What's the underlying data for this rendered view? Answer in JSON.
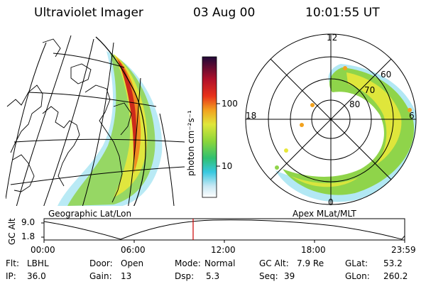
{
  "header": {
    "instrument": "Ultraviolet Imager",
    "date": "03 Aug 00",
    "time": "10:01:55 UT"
  },
  "left_map": {
    "caption": "Geographic Lat/Lon"
  },
  "right_map": {
    "caption": "Apex MLat/MLT",
    "mlt_labels": [
      "12",
      "18",
      "6",
      "0"
    ],
    "lat_labels": [
      "60",
      "70",
      "80"
    ]
  },
  "colorbar": {
    "label": "photon cm⁻²s⁻¹",
    "ticks": [
      "100",
      "10"
    ],
    "scale": "log"
  },
  "timeline": {
    "ylabel": "GC Alt",
    "y_ticks": [
      "9.0",
      "1.8"
    ],
    "x_ticks": [
      "00:00",
      "06:00",
      "12:00",
      "18:00",
      "23:59"
    ],
    "marker_color": "#cc0000"
  },
  "info": {
    "flt_label": "Flt:",
    "flt_value": "LBHL",
    "ip_label": "IP:",
    "ip_value": "36.0",
    "door_label": "Door:",
    "door_value": "Open",
    "gain_label": "Gain:",
    "gain_value": "13",
    "mode_label": "Mode:",
    "mode_value": "Normal",
    "dsp_label": "Dsp:",
    "dsp_value": "5.3",
    "gcalt_label": "GC Alt:",
    "gcalt_value": "7.9 Re",
    "seq_label": "Seq:",
    "seq_value": "39",
    "glat_label": "GLat:",
    "glat_value": "53.2",
    "glon_label": "GLon:",
    "glon_value": "260.2"
  }
}
